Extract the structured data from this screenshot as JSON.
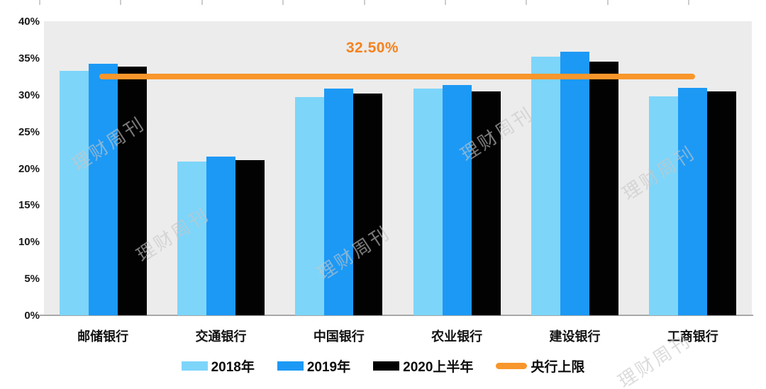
{
  "watermark_text": "理财周刊",
  "chart_data": {
    "type": "bar",
    "title": "",
    "categories": [
      "邮储银行",
      "交通银行",
      "中国银行",
      "农业银行",
      "建设银行",
      "工商银行"
    ],
    "series": [
      {
        "name": "2018年",
        "color": "#7DD5FA",
        "values": [
          33.3,
          20.9,
          29.7,
          30.8,
          35.2,
          29.8
        ]
      },
      {
        "name": "2019年",
        "color": "#1C99F5",
        "values": [
          34.2,
          21.6,
          30.8,
          31.3,
          35.9,
          30.9
        ]
      },
      {
        "name": "2020上半年",
        "color": "#020202",
        "values": [
          33.8,
          21.1,
          30.2,
          30.5,
          34.5,
          30.5
        ]
      }
    ],
    "reference_line": {
      "name": "央行上限",
      "value": 32.5,
      "annotation": "32.50%",
      "line_color": "#F8962B",
      "annotation_color": "#F5821F"
    },
    "ylim": [
      0,
      40
    ],
    "ytick_step": 5,
    "ytick_suffix": "%",
    "grid": false,
    "legend_position": "bottom",
    "plot_background": "#ECECEC"
  }
}
